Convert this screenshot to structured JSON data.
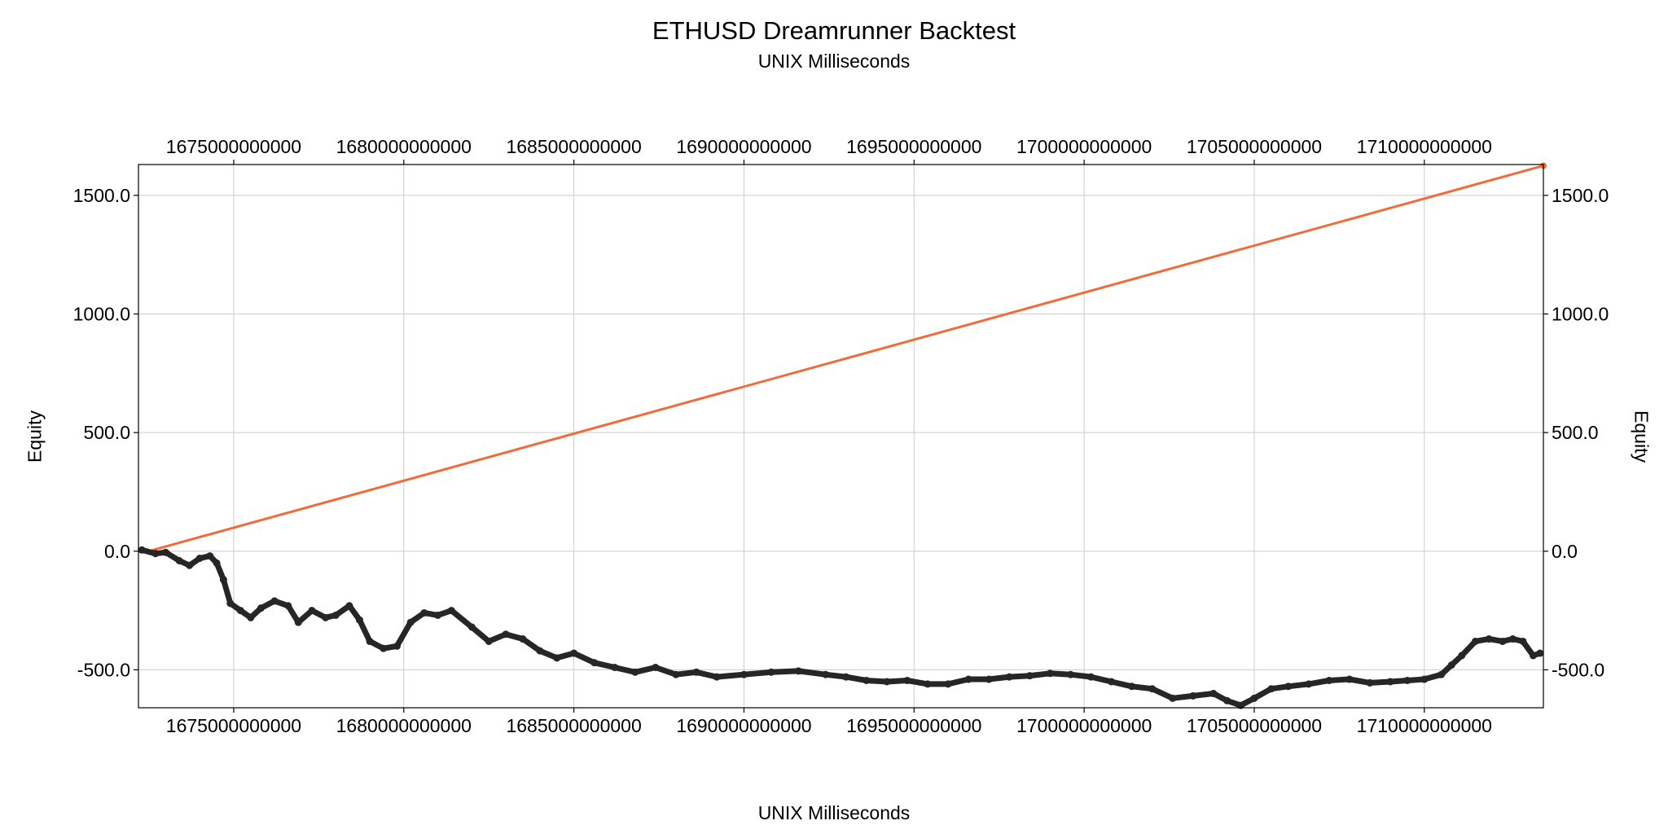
{
  "chart_data": {
    "type": "scatter",
    "title": "ETHUSD Dreamrunner Backtest",
    "subtitle": "UNIX Milliseconds",
    "xlabel": "UNIX Milliseconds",
    "ylabel": "Equity",
    "ylabel_right": "Equity",
    "xlim": [
      1672200000000,
      1713500000000
    ],
    "ylim": [
      -660,
      1630
    ],
    "xticks": [
      1675000000000,
      1680000000000,
      1685000000000,
      1690000000000,
      1695000000000,
      1700000000000,
      1705000000000,
      1710000000000
    ],
    "xtick_labels": [
      "1675000000000",
      "1680000000000",
      "1685000000000",
      "1690000000000",
      "1695000000000",
      "1700000000000",
      "1705000000000",
      "1710000000000"
    ],
    "yticks": [
      -500,
      0,
      500,
      1000,
      1500
    ],
    "ytick_labels": [
      "-500.0",
      "0.0",
      "500.0",
      "1000.0",
      "1500.0"
    ],
    "grid": true,
    "colors": {
      "equity": "#262626",
      "trend": "#f26b3a",
      "grid": "#cccccc"
    },
    "series": [
      {
        "kind": "line",
        "x": [
          1672500000000,
          1713500000000
        ],
        "y": [
          0,
          1625
        ]
      },
      {
        "kind": "points",
        "x": [
          1672300000000,
          1672700000000,
          1673000000000,
          1673400000000,
          1673700000000,
          1674000000000,
          1674300000000,
          1674500000000,
          1674700000000,
          1674900000000,
          1675200000000,
          1675500000000,
          1675800000000,
          1676200000000,
          1676600000000,
          1676900000000,
          1677300000000,
          1677700000000,
          1678000000000,
          1678400000000,
          1678700000000,
          1679000000000,
          1679400000000,
          1679800000000,
          1680200000000,
          1680600000000,
          1681000000000,
          1681400000000,
          1682000000000,
          1682500000000,
          1683000000000,
          1683500000000,
          1684000000000,
          1684500000000,
          1685000000000,
          1685600000000,
          1686200000000,
          1686800000000,
          1687400000000,
          1688000000000,
          1688600000000,
          1689200000000,
          1690000000000,
          1690800000000,
          1691600000000,
          1692400000000,
          1693000000000,
          1693600000000,
          1694200000000,
          1694800000000,
          1695400000000,
          1696000000000,
          1696600000000,
          1697200000000,
          1697800000000,
          1698400000000,
          1699000000000,
          1699600000000,
          1700200000000,
          1700800000000,
          1701400000000,
          1702000000000,
          1702600000000,
          1703200000000,
          1703800000000,
          1704200000000,
          1704600000000,
          1705000000000,
          1705500000000,
          1706000000000,
          1706600000000,
          1707200000000,
          1707800000000,
          1708400000000,
          1709000000000,
          1709500000000,
          1710000000000,
          1710500000000,
          1710800000000,
          1711100000000,
          1711500000000,
          1711900000000,
          1712300000000,
          1712600000000,
          1712900000000,
          1713200000000,
          1713400000000
        ],
        "y": [
          5,
          -10,
          -5,
          -40,
          -60,
          -30,
          -20,
          -50,
          -120,
          -220,
          -250,
          -280,
          -240,
          -210,
          -230,
          -300,
          -250,
          -280,
          -270,
          -230,
          -290,
          -380,
          -410,
          -400,
          -300,
          -260,
          -270,
          -250,
          -320,
          -380,
          -350,
          -370,
          -420,
          -450,
          -430,
          -470,
          -490,
          -510,
          -490,
          -520,
          -510,
          -530,
          -520,
          -510,
          -505,
          -520,
          -530,
          -545,
          -550,
          -545,
          -560,
          -560,
          -540,
          -540,
          -530,
          -525,
          -515,
          -520,
          -530,
          -550,
          -570,
          -580,
          -620,
          -610,
          -600,
          -630,
          -650,
          -620,
          -580,
          -570,
          -560,
          -545,
          -540,
          -555,
          -550,
          -545,
          -540,
          -520,
          -480,
          -440,
          -380,
          -370,
          -380,
          -370,
          -380,
          -440,
          -430
        ]
      }
    ]
  }
}
